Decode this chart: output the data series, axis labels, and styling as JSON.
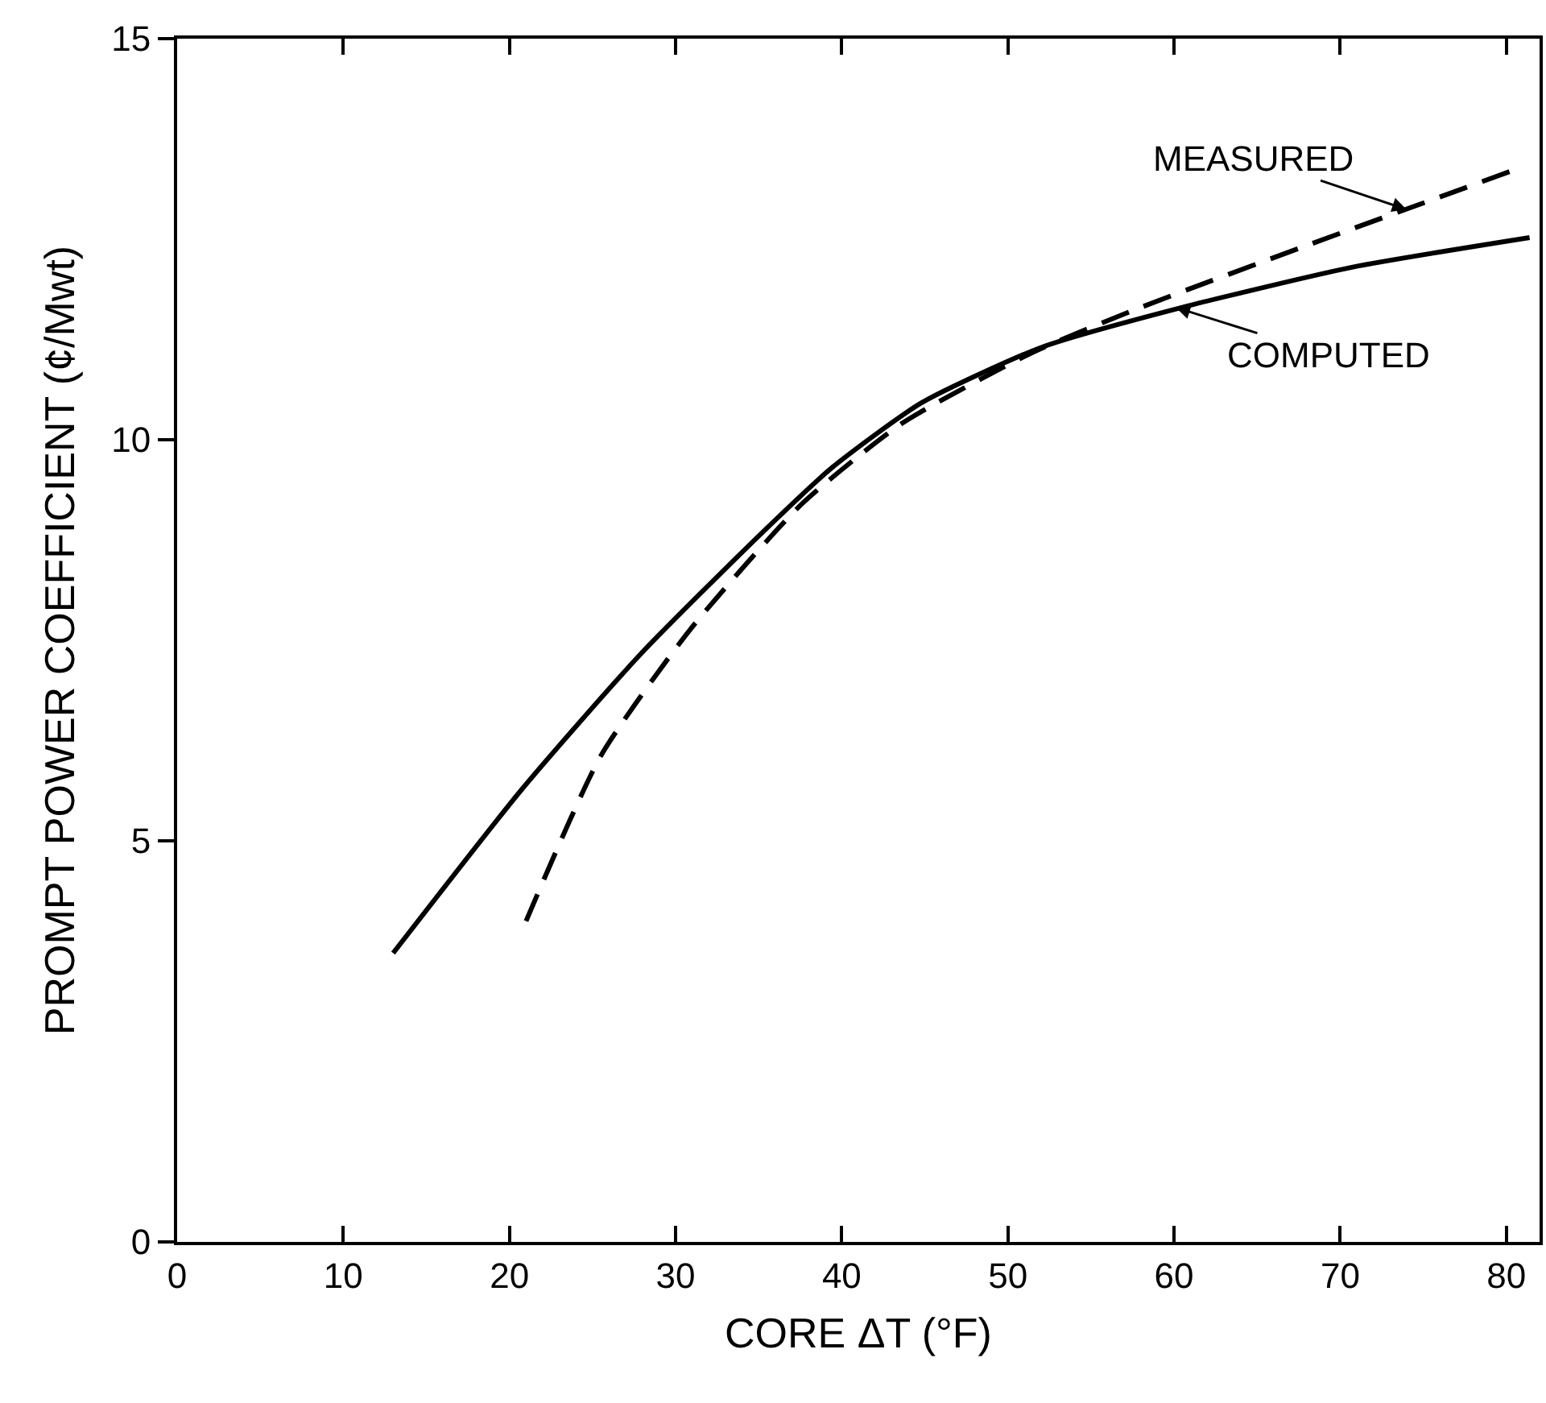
{
  "chart_data": {
    "type": "line",
    "xlabel": "CORE ΔT (°F)",
    "ylabel": "PROMPT POWER COEFFICIENT (¢/Mwt)",
    "xlim": [
      0,
      82
    ],
    "xticks": [
      0,
      10,
      20,
      30,
      40,
      50,
      60,
      70,
      80
    ],
    "ylim": [
      0,
      15
    ],
    "yticks": [
      0,
      5,
      10,
      15
    ],
    "marker": "none",
    "series": [
      {
        "color": "#000000",
        "line_style": "dashed",
        "x": [
          21,
          25.5,
          30.9,
          37.6,
          43.6,
          51.4,
          58,
          67.7,
          80.3
        ],
        "values": [
          4.0,
          6.06,
          7.64,
          9.2,
          10.2,
          11.08,
          11.65,
          12.4,
          13.35
        ]
      },
      {
        "color": "#000000",
        "line_style": "solid",
        "x": [
          13,
          20.7,
          27.9,
          35.2,
          39.4,
          44.8,
          52,
          60.5,
          70.7,
          81.4
        ],
        "values": [
          3.6,
          5.63,
          7.33,
          8.84,
          9.65,
          10.46,
          11.15,
          11.65,
          12.15,
          12.52
        ]
      }
    ],
    "annotations": [
      {
        "text": "MEASURED",
        "x": 74,
        "y": 12.87
      },
      {
        "text": "COMPUTED",
        "x": 60.1,
        "y": 11.65
      }
    ]
  }
}
